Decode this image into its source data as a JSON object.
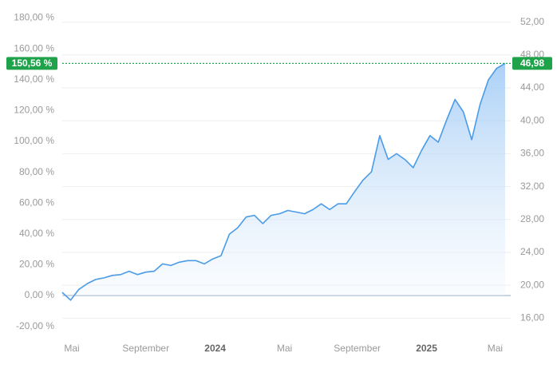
{
  "chart_data": {
    "type": "area",
    "series": [
      {
        "axis": "y2",
        "color": "#4a9be8",
        "values": [
          19.13,
          18.19,
          19.5,
          20.2,
          20.7,
          20.9,
          21.2,
          21.3,
          21.7,
          21.3,
          21.6,
          21.7,
          22.6,
          22.4,
          22.8,
          23.0,
          23.0,
          22.6,
          23.2,
          23.6,
          26.2,
          27.0,
          28.3,
          28.5,
          27.5,
          28.5,
          28.7,
          29.1,
          28.9,
          28.7,
          29.2,
          29.9,
          29.2,
          29.9,
          29.9,
          31.4,
          32.8,
          33.8,
          38.2,
          35.3,
          36.0,
          35.3,
          34.3,
          36.4,
          38.2,
          37.4,
          40.1,
          42.6,
          41.1,
          37.7,
          42.0,
          45.0,
          46.4,
          46.98
        ]
      }
    ],
    "xlim": [
      0,
      53
    ],
    "xticks": [
      {
        "value": 1.15,
        "label": "Mai"
      },
      {
        "value": 10.0,
        "label": "September"
      },
      {
        "value": 18.3,
        "label": "2024"
      },
      {
        "value": 26.6,
        "label": "Mai"
      },
      {
        "value": 35.3,
        "label": "September"
      },
      {
        "value": 43.6,
        "label": "2025"
      },
      {
        "value": 51.8,
        "label": "Mai"
      }
    ],
    "ylim": [
      -25.9,
      186.5
    ],
    "yticks": [
      {
        "value": -20,
        "label": "-20,00 %"
      },
      {
        "value": 0,
        "label": "0,00 %"
      },
      {
        "value": 20,
        "label": "20,00 %"
      },
      {
        "value": 40,
        "label": "40,00 %"
      },
      {
        "value": 60,
        "label": "60,00 %"
      },
      {
        "value": 80,
        "label": "80,00 %"
      },
      {
        "value": 100,
        "label": "100,00 %"
      },
      {
        "value": 120,
        "label": "120,00 %"
      },
      {
        "value": 140,
        "label": "140,00 %"
      },
      {
        "value": 160,
        "label": "160,00 %"
      },
      {
        "value": 180,
        "label": "180,00 %"
      }
    ],
    "y2lim": [
      13.894,
      53.72
    ],
    "y2ticks": [
      {
        "value": 16,
        "label": "16,00"
      },
      {
        "value": 20,
        "label": "20,00"
      },
      {
        "value": 24,
        "label": "24,00"
      },
      {
        "value": 28,
        "label": "28,00"
      },
      {
        "value": 32,
        "label": "32,00"
      },
      {
        "value": 36,
        "label": "36,00"
      },
      {
        "value": 40,
        "label": "40,00"
      },
      {
        "value": 44,
        "label": "44,00"
      },
      {
        "value": 48,
        "label": "48,00"
      },
      {
        "value": 52,
        "label": "52,00"
      }
    ],
    "grid": true,
    "markers": [
      {
        "axis": "y",
        "value": 150.56,
        "label": "150,56 %",
        "color": "#1fa34a"
      },
      {
        "axis": "y2",
        "value": 46.98,
        "label": "46,98",
        "color": "#1fa34a"
      }
    ]
  }
}
